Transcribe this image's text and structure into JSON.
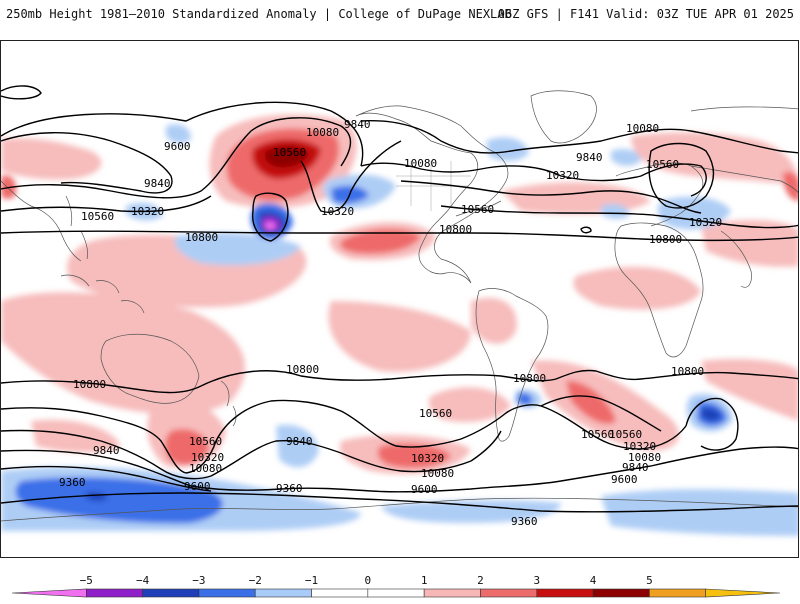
{
  "header": {
    "title": "250mb Height 1981–2010 Standardized Anomaly | College of DuPage NEXLAB",
    "run_info": "06Z GFS | F141 Valid: 03Z TUE APR 01 2025"
  },
  "colorbar": {
    "tick_labels": [
      "−5",
      "−4",
      "−3",
      "−2",
      "−1",
      "0",
      "1",
      "2",
      "3",
      "4",
      "5"
    ],
    "colors": [
      "#f070f0",
      "#8f1fc8",
      "#1f3fb8",
      "#3a6fe8",
      "#a9cbf7",
      "#ffffff",
      "#ffffff",
      "#f7b7b7",
      "#ec6b6b",
      "#c70f0f",
      "#8c0000",
      "#f0a020",
      "#f5c010"
    ]
  },
  "contour_labels": {
    "c1": "9600",
    "c2": "9840",
    "c3": "10080",
    "c4": "10560",
    "c5": "9840",
    "c6": "10080",
    "c7": "9840",
    "c8": "10080",
    "c9": "10560",
    "c10": "10320",
    "c11": "10560",
    "c12": "10320",
    "c13": "10800",
    "c14": "10320",
    "c15": "10560",
    "c16": "10800",
    "c17": "10800",
    "c18": "10800",
    "c19": "10800",
    "c20": "10800",
    "c21": "10560",
    "c22": "10320",
    "c23": "10080",
    "c24": "9840",
    "c25": "9360",
    "c26": "9600",
    "c27": "9840",
    "c28": "9360",
    "c29": "10560",
    "c30": "10320",
    "c31": "10080",
    "c32": "9600",
    "c33": "10800",
    "c34": "10560",
    "c35": "10560",
    "c36": "10320",
    "c37": "10080",
    "c38": "9840",
    "c39": "9600",
    "c40": "9360",
    "c41": "10800"
  }
}
